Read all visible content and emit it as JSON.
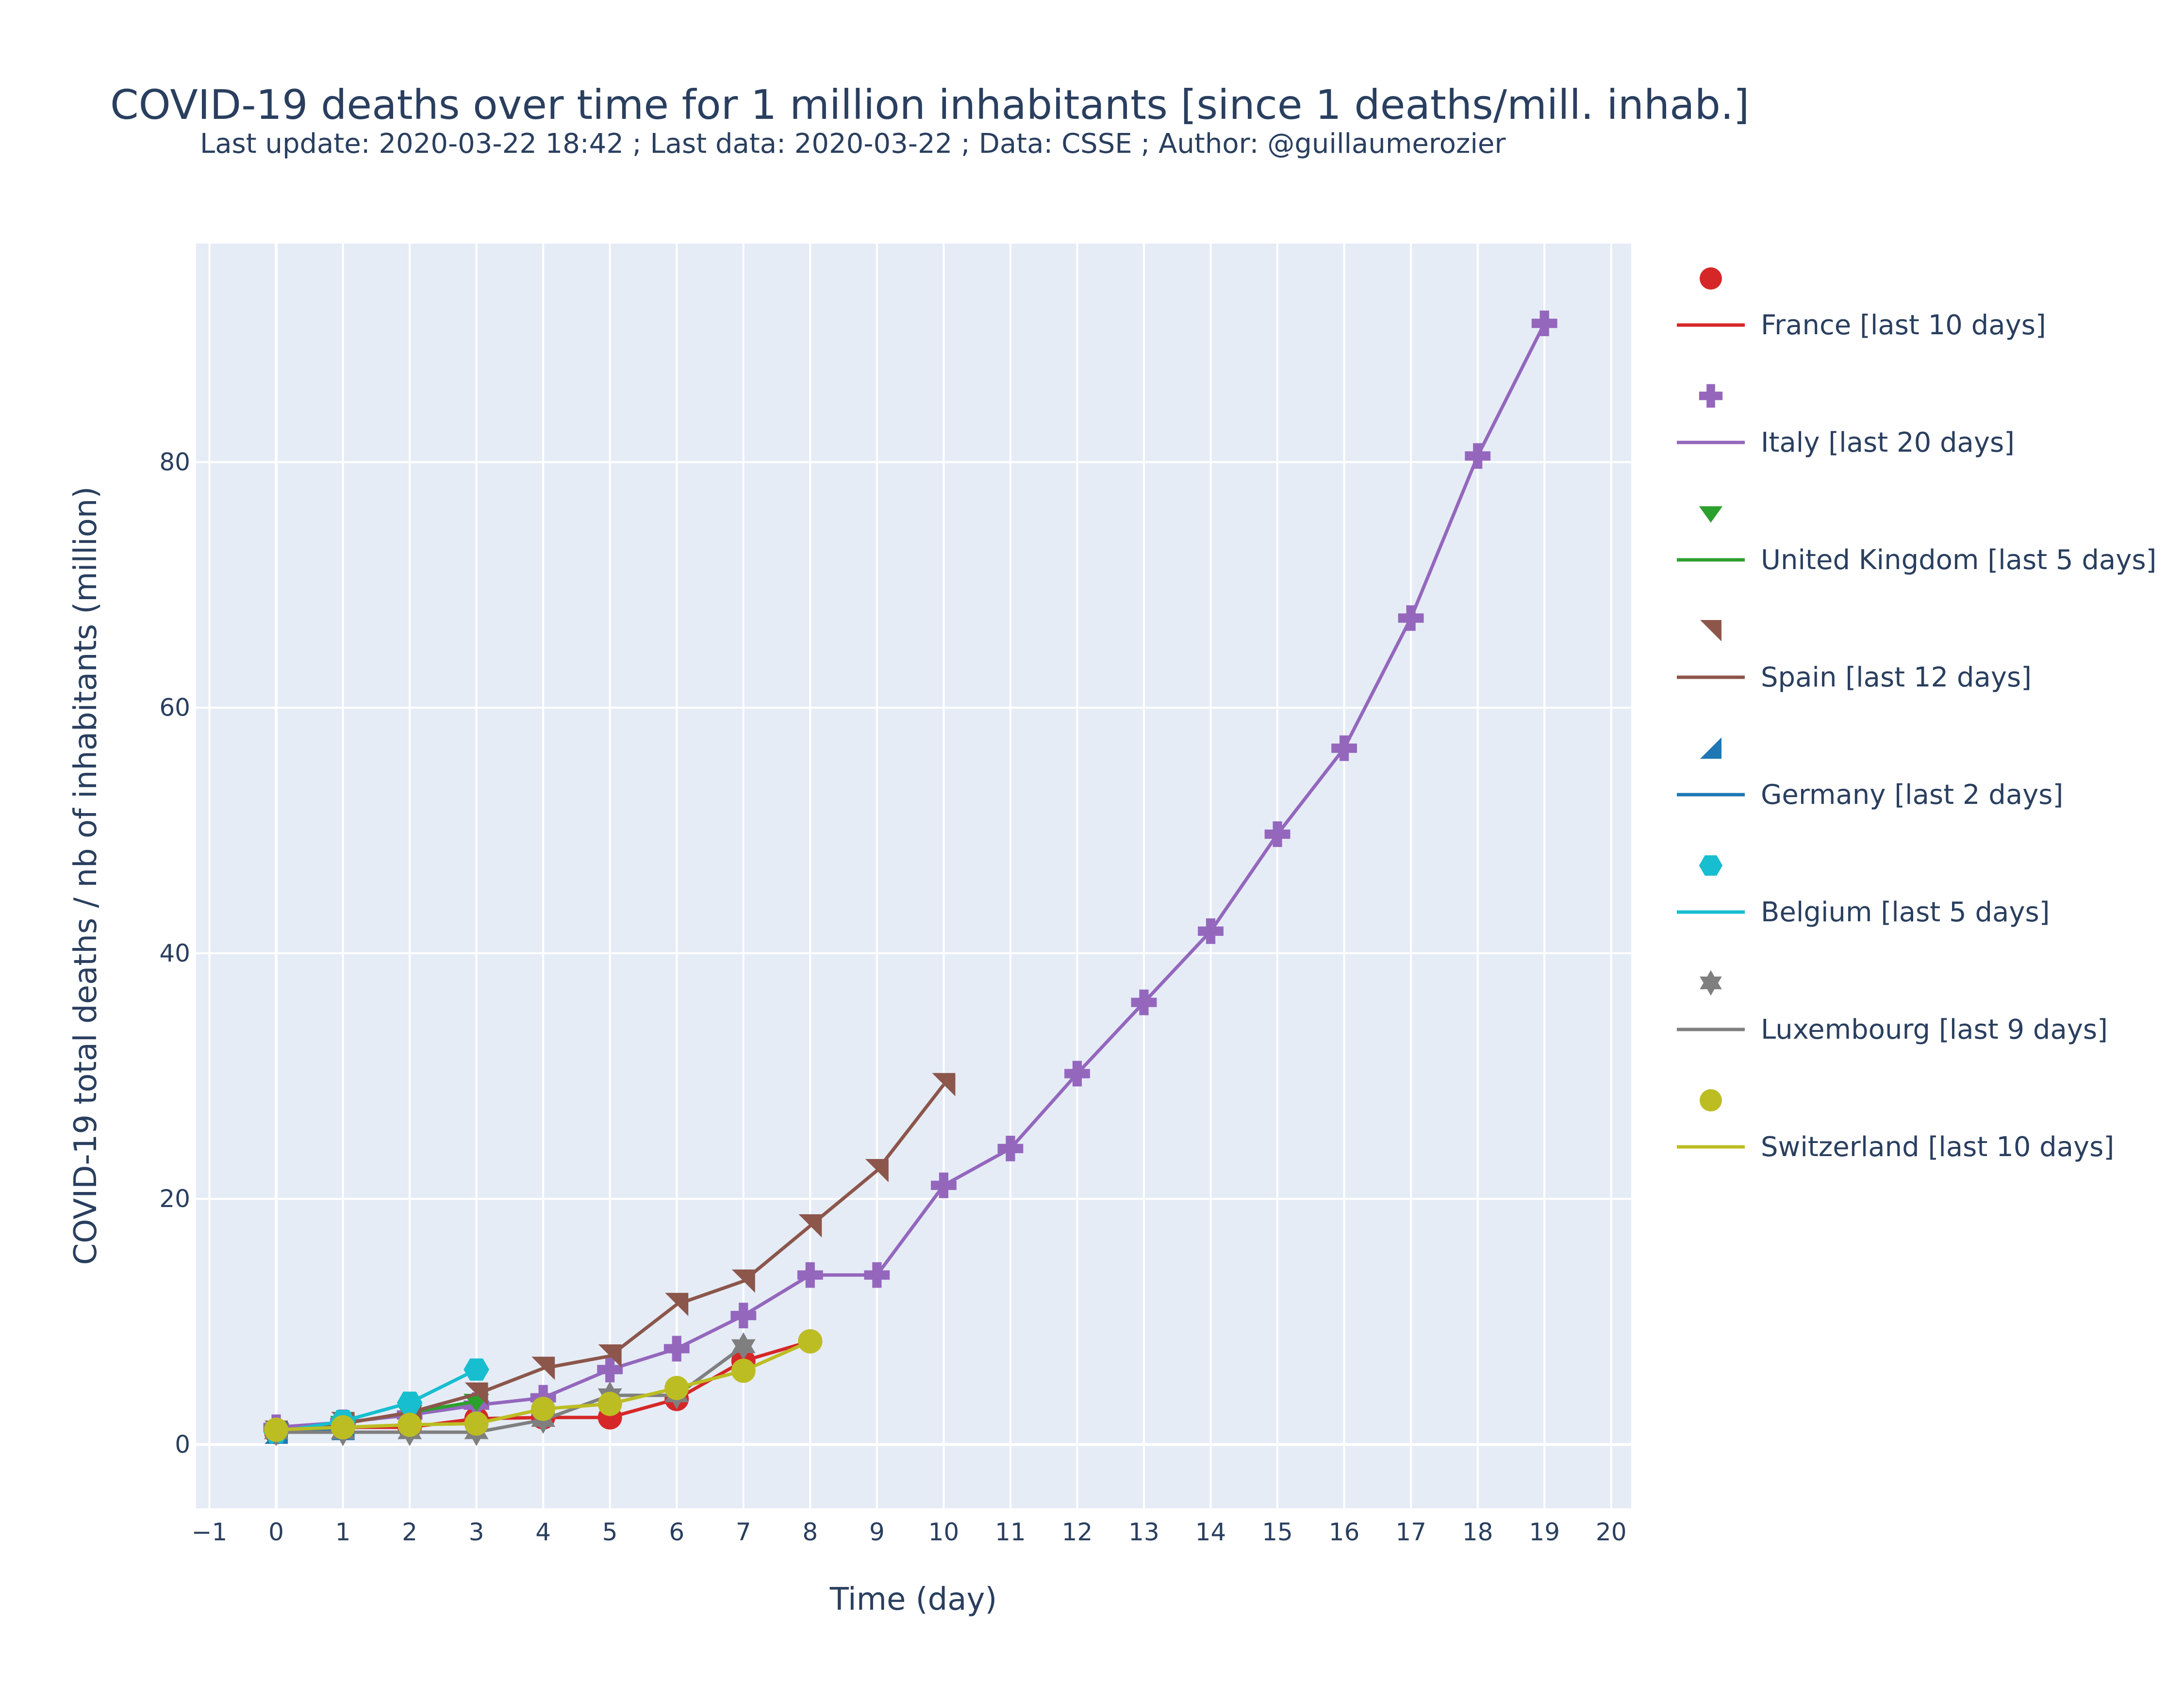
{
  "chart_data": {
    "type": "line",
    "title": "COVID-19 deaths over time for 1 million inhabitants [since 1 deaths/mill. inhab.]",
    "subtitle": "Last update: 2020-03-22 18:42 ; Last data: 2020-03-22 ; Data: CSSE ; Author: @guillaumerozier",
    "xlabel": "Time (day)",
    "ylabel": "COVID-19 total deaths / nb of inhabitants (million)",
    "xlim": [
      -1.2,
      20.3
    ],
    "ylim": [
      -5.2,
      97.8
    ],
    "xticks": [
      -1,
      0,
      1,
      2,
      3,
      4,
      5,
      6,
      7,
      8,
      9,
      10,
      11,
      12,
      13,
      14,
      15,
      16,
      17,
      18,
      19,
      20
    ],
    "xtick_labels": [
      "−1",
      "0",
      "1",
      "2",
      "3",
      "4",
      "5",
      "6",
      "7",
      "8",
      "9",
      "10",
      "11",
      "12",
      "13",
      "14",
      "15",
      "16",
      "17",
      "18",
      "19",
      "20"
    ],
    "yticks": [
      0,
      20,
      40,
      60,
      80
    ],
    "ytick_labels": [
      "0",
      "20",
      "40",
      "60",
      "80"
    ],
    "grid": true,
    "plot_background": "#e5ecf6",
    "legend_position": "right",
    "series": [
      {
        "name": "France [last 10 days]",
        "color": "#d62728",
        "marker": "circle",
        "x": [
          0,
          1,
          2,
          3,
          4,
          5,
          6,
          7,
          8
        ],
        "y": [
          1.0,
          1.4,
          1.4,
          2.1,
          2.2,
          2.2,
          3.7,
          6.8,
          8.4
        ]
      },
      {
        "name": "Italy [last 20 days]",
        "color": "#9467bd",
        "marker": "cross",
        "x": [
          0,
          1,
          2,
          3,
          4,
          5,
          6,
          7,
          8,
          9,
          10,
          11,
          12,
          13,
          14,
          15,
          16,
          17,
          18,
          19
        ],
        "y": [
          1.4,
          1.8,
          2.4,
          3.2,
          3.8,
          6.1,
          7.8,
          10.5,
          13.8,
          13.8,
          21.1,
          24.1,
          30.2,
          36.0,
          41.8,
          49.7,
          56.7,
          67.3,
          80.5,
          91.3
        ]
      },
      {
        "name": "United Kingdom [last 5 days]",
        "color": "#2ca02c",
        "marker": "triangle-down",
        "x": [
          0,
          1,
          2,
          3
        ],
        "y": [
          1.0,
          1.7,
          2.6,
          3.5
        ]
      },
      {
        "name": "Spain [last 12 days]",
        "color": "#8c564b",
        "marker": "arrow-tr",
        "x": [
          0,
          1,
          2,
          3,
          4,
          5,
          6,
          7,
          8,
          9,
          10
        ],
        "y": [
          1.0,
          1.7,
          2.6,
          4.1,
          6.2,
          7.2,
          11.4,
          13.3,
          17.8,
          22.3,
          29.3
        ]
      },
      {
        "name": "Germany [last 2 days]",
        "color": "#1f77b4",
        "marker": "arrow-bl",
        "x": [
          0,
          1
        ],
        "y": [
          1.0,
          1.3
        ]
      },
      {
        "name": "Belgium [last 5 days]",
        "color": "#17becf",
        "marker": "hexagon",
        "x": [
          0,
          1,
          2,
          3
        ],
        "y": [
          1.0,
          1.9,
          3.4,
          6.1
        ]
      },
      {
        "name": "Luxembourg [last 9 days]",
        "color": "#7f7f7f",
        "marker": "star",
        "x": [
          0,
          1,
          2,
          3,
          4,
          5,
          6,
          7
        ],
        "y": [
          1.0,
          1.0,
          1.0,
          1.0,
          2.0,
          4.0,
          4.0,
          8.0
        ]
      },
      {
        "name": "Switzerland [last 10 days]",
        "color": "#bcbd22",
        "marker": "circle",
        "x": [
          0,
          1,
          2,
          3,
          4,
          5,
          6,
          7,
          8
        ],
        "y": [
          1.2,
          1.4,
          1.6,
          1.7,
          2.9,
          3.3,
          4.6,
          6.0,
          8.4
        ]
      }
    ]
  }
}
